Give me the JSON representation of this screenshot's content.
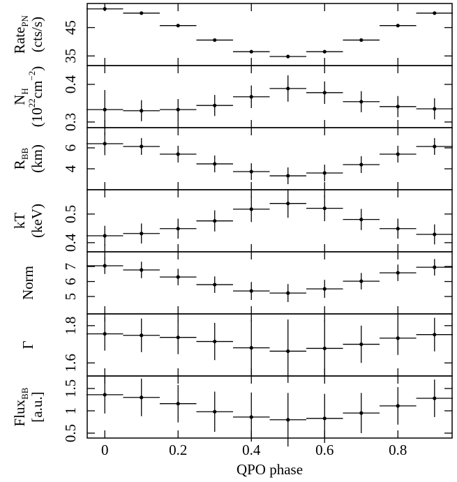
{
  "chart_data": [
    {
      "type": "errorbar",
      "ylabel": [
        [
          {
            "text": "Rate"
          },
          {
            "text": "PN",
            "shift": "sub"
          }
        ],
        [
          {
            "text": "(cts/s)"
          }
        ]
      ],
      "x": [
        0,
        0.1,
        0.2,
        0.3,
        0.4,
        0.5,
        0.6,
        0.7,
        0.8,
        0.9
      ],
      "xerr": [
        0.05,
        0.05,
        0.05,
        0.05,
        0.05,
        0.05,
        0.05,
        0.05,
        0.05,
        0.05
      ],
      "values": [
        51.6,
        50.1,
        45.7,
        40.6,
        36.5,
        34.8,
        36.5,
        40.6,
        45.7,
        50.1
      ],
      "yerr": [
        0.3,
        0.3,
        0.3,
        0.3,
        0.3,
        0.3,
        0.3,
        0.3,
        0.3,
        0.3
      ],
      "xlim": [
        -0.048,
        0.948
      ],
      "xticks": [
        0,
        0.2,
        0.4,
        0.6,
        0.8
      ],
      "ylim": [
        31.6,
        53.5
      ],
      "yticks": [
        35,
        45
      ],
      "color": "#000000"
    },
    {
      "type": "errorbar",
      "ylabel": [
        [
          {
            "text": "N"
          },
          {
            "text": "H",
            "shift": "sub"
          }
        ],
        [
          {
            "text": "(10"
          },
          {
            "text": "22",
            "shift": "super"
          },
          {
            "text": "cm"
          },
          {
            "text": "−2",
            "shift": "super"
          },
          {
            "text": ")"
          }
        ]
      ],
      "x": [
        0,
        0.1,
        0.2,
        0.3,
        0.4,
        0.5,
        0.6,
        0.7,
        0.8,
        0.9
      ],
      "xerr": [
        0.05,
        0.05,
        0.05,
        0.05,
        0.05,
        0.05,
        0.05,
        0.05,
        0.05,
        0.05
      ],
      "values": [
        0.333,
        0.33,
        0.333,
        0.344,
        0.367,
        0.389,
        0.378,
        0.354,
        0.341,
        0.335
      ],
      "yerr": [
        0.052,
        0.028,
        0.028,
        0.028,
        0.03,
        0.035,
        0.03,
        0.028,
        0.028,
        0.028
      ],
      "xlim": [
        -0.048,
        0.948
      ],
      "xticks": [
        0,
        0.2,
        0.4,
        0.6,
        0.8
      ],
      "ylim": [
        0.285,
        0.45
      ],
      "yticks": [
        0.3,
        0.4
      ],
      "color": "#000000"
    },
    {
      "type": "errorbar",
      "ylabel": [
        [
          {
            "text": "R"
          },
          {
            "text": "BB",
            "shift": "sub"
          }
        ],
        [
          {
            "text": "(km)"
          }
        ]
      ],
      "x": [
        0,
        0.1,
        0.2,
        0.3,
        0.4,
        0.5,
        0.6,
        0.7,
        0.8,
        0.9
      ],
      "xerr": [
        0.05,
        0.05,
        0.05,
        0.05,
        0.05,
        0.05,
        0.05,
        0.05,
        0.05,
        0.05
      ],
      "values": [
        6.4,
        6.13,
        5.4,
        4.47,
        3.73,
        3.33,
        3.6,
        4.4,
        5.4,
        6.13
      ],
      "yerr": [
        1.1,
        0.8,
        0.8,
        0.8,
        0.8,
        0.8,
        0.8,
        0.8,
        0.8,
        0.8
      ],
      "xlim": [
        -0.048,
        0.948
      ],
      "xticks": [
        0,
        0.2,
        0.4,
        0.6,
        0.8
      ],
      "ylim": [
        2.0,
        7.93
      ],
      "yticks": [
        4,
        6
      ],
      "color": "#000000"
    },
    {
      "type": "errorbar",
      "ylabel": [
        [
          {
            "text": "kT"
          }
        ],
        [
          {
            "text": "(keV)"
          }
        ]
      ],
      "x": [
        0,
        0.1,
        0.2,
        0.3,
        0.4,
        0.5,
        0.6,
        0.7,
        0.8,
        0.9
      ],
      "xerr": [
        0.05,
        0.05,
        0.05,
        0.05,
        0.05,
        0.05,
        0.05,
        0.05,
        0.05,
        0.05
      ],
      "values": [
        0.424,
        0.432,
        0.449,
        0.476,
        0.517,
        0.537,
        0.52,
        0.481,
        0.449,
        0.429
      ],
      "yerr": [
        0.035,
        0.035,
        0.035,
        0.037,
        0.045,
        0.05,
        0.045,
        0.037,
        0.035,
        0.035
      ],
      "xlim": [
        -0.048,
        0.948
      ],
      "xticks": [
        0,
        0.2,
        0.4,
        0.6,
        0.8
      ],
      "ylim": [
        0.368,
        0.585
      ],
      "yticks": [
        0.4,
        0.5
      ],
      "color": "#000000"
    },
    {
      "type": "errorbar",
      "ylabel": [
        [
          {
            "text": "Norm"
          }
        ]
      ],
      "x": [
        0,
        0.1,
        0.2,
        0.3,
        0.4,
        0.5,
        0.6,
        0.7,
        0.8,
        0.9
      ],
      "xerr": [
        0.05,
        0.05,
        0.05,
        0.05,
        0.05,
        0.05,
        0.05,
        0.05,
        0.05,
        0.05
      ],
      "values": [
        7.05,
        6.77,
        6.3,
        5.79,
        5.37,
        5.23,
        5.51,
        6.02,
        6.58,
        6.95
      ],
      "yerr": [
        0.55,
        0.55,
        0.55,
        0.55,
        0.6,
        0.6,
        0.6,
        0.55,
        0.55,
        0.55
      ],
      "xlim": [
        -0.048,
        0.948
      ],
      "xticks": [
        0,
        0.2,
        0.4,
        0.6,
        0.8
      ],
      "ylim": [
        3.84,
        7.98
      ],
      "yticks": [
        5,
        6,
        7
      ],
      "color": "#000000"
    },
    {
      "type": "errorbar",
      "ylabel": [
        [
          {
            "text": "Γ"
          }
        ]
      ],
      "x": [
        0,
        0.1,
        0.2,
        0.3,
        0.4,
        0.5,
        0.6,
        0.7,
        0.8,
        0.9
      ],
      "xerr": [
        0.05,
        0.05,
        0.05,
        0.05,
        0.05,
        0.05,
        0.05,
        0.05,
        0.05,
        0.05
      ],
      "values": [
        1.756,
        1.748,
        1.737,
        1.715,
        1.681,
        1.663,
        1.678,
        1.7,
        1.733,
        1.752
      ],
      "yerr": [
        0.09,
        0.09,
        0.09,
        0.1,
        0.15,
        0.17,
        0.15,
        0.1,
        0.09,
        0.09
      ],
      "xlim": [
        -0.048,
        0.948
      ],
      "xticks": [
        0,
        0.2,
        0.4,
        0.6,
        0.8
      ],
      "ylim": [
        1.53,
        1.863
      ],
      "yticks": [
        1.6,
        1.8
      ],
      "color": "#000000"
    },
    {
      "type": "errorbar",
      "ylabel": [
        [
          {
            "text": "Flux"
          },
          {
            "text": "BB",
            "shift": "sub"
          }
        ],
        [
          {
            "text": "[a.u.]"
          }
        ]
      ],
      "x": [
        0,
        0.1,
        0.2,
        0.3,
        0.4,
        0.5,
        0.6,
        0.7,
        0.8,
        0.9
      ],
      "xerr": [
        0.05,
        0.05,
        0.05,
        0.05,
        0.05,
        0.05,
        0.05,
        0.05,
        0.05,
        0.05
      ],
      "values": [
        1.36,
        1.3,
        1.16,
        0.98,
        0.86,
        0.8,
        0.83,
        0.95,
        1.11,
        1.28
      ],
      "yerr": [
        0.42,
        0.42,
        0.42,
        0.45,
        0.55,
        0.6,
        0.55,
        0.45,
        0.42,
        0.42
      ],
      "xlim": [
        -0.048,
        0.948
      ],
      "xticks": [
        0,
        0.2,
        0.4,
        0.6,
        0.8
      ],
      "ylim": [
        0.39,
        1.78
      ],
      "yticks": [
        0.5,
        1,
        1.5
      ],
      "color": "#000000",
      "xlabel": "QPO phase"
    }
  ]
}
